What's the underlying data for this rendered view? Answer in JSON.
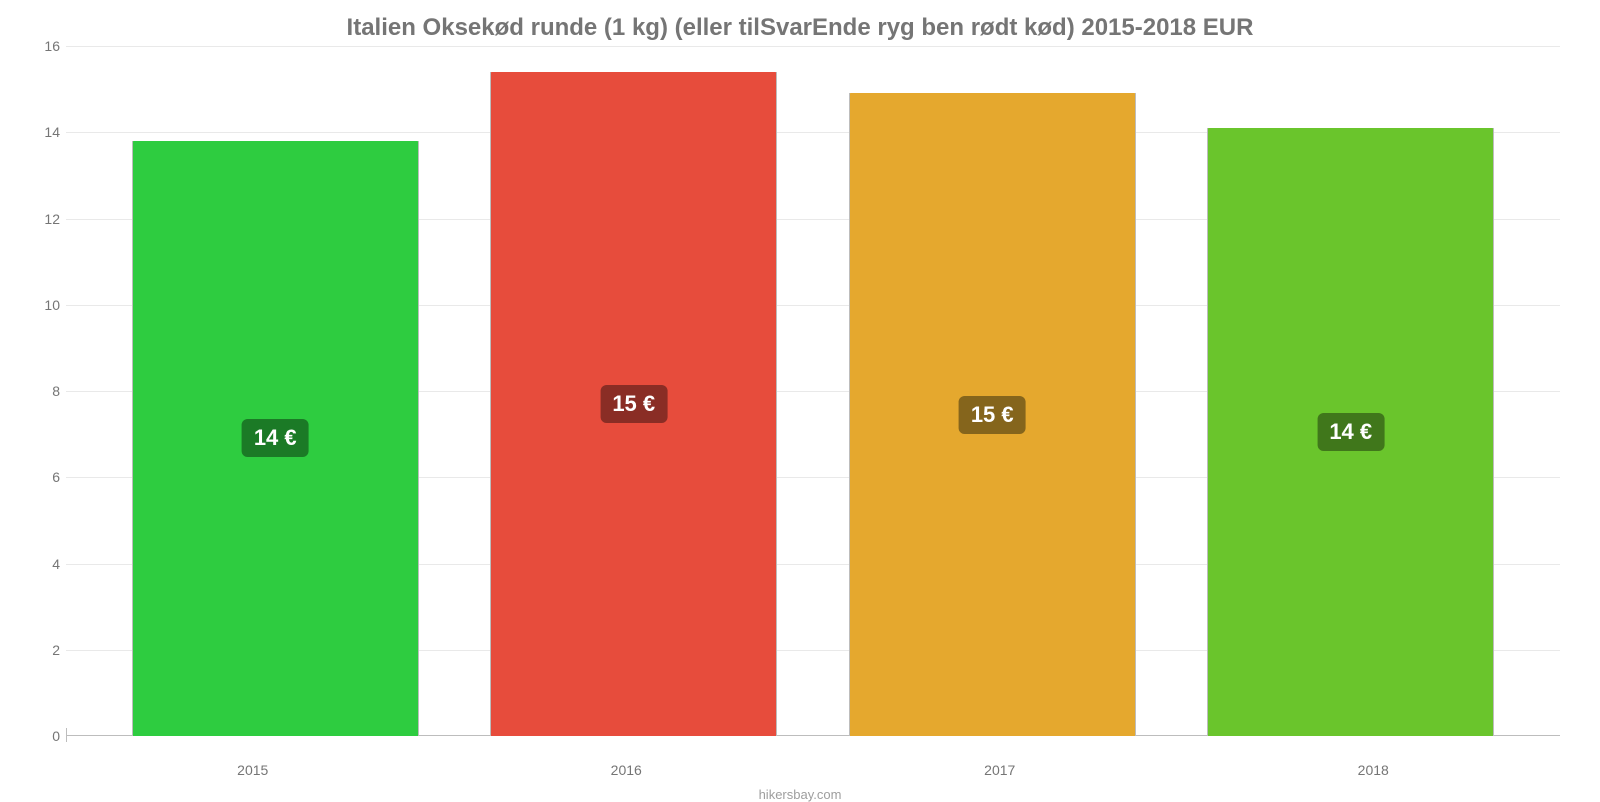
{
  "chart": {
    "type": "bar",
    "title": "Italien Oksekød runde (1 kg) (eller tilSvarEnde ryg ben rødt kød) 2015-2018 EUR",
    "title_color": "#757575",
    "title_fontsize": 24,
    "background_color": "#ffffff",
    "grid_color": "#e9e9e9",
    "baseline_color": "#bdbdbd",
    "axis_label_color": "#757575",
    "axis_label_fontsize": 14,
    "categories": [
      "2015",
      "2016",
      "2017",
      "2018"
    ],
    "values": [
      13.8,
      15.4,
      14.9,
      14.1
    ],
    "value_labels": [
      "14 €",
      "15 €",
      "15 €",
      "14 €"
    ],
    "bar_colors": [
      "#2ecc40",
      "#e74c3c",
      "#e5a82e",
      "#6ac52c"
    ],
    "badge_colors": [
      "#1b7a26",
      "#8a2d25",
      "#85651c",
      "#40771b"
    ],
    "badge_text_color": "#ffffff",
    "badge_fontsize": 22,
    "ylim": [
      0,
      16
    ],
    "ytick_step": 2,
    "yticks": [
      0,
      2,
      4,
      6,
      8,
      10,
      12,
      14,
      16
    ],
    "bar_width": 0.8,
    "footer": "hikersbay.com",
    "footer_color": "#9e9e9e"
  }
}
